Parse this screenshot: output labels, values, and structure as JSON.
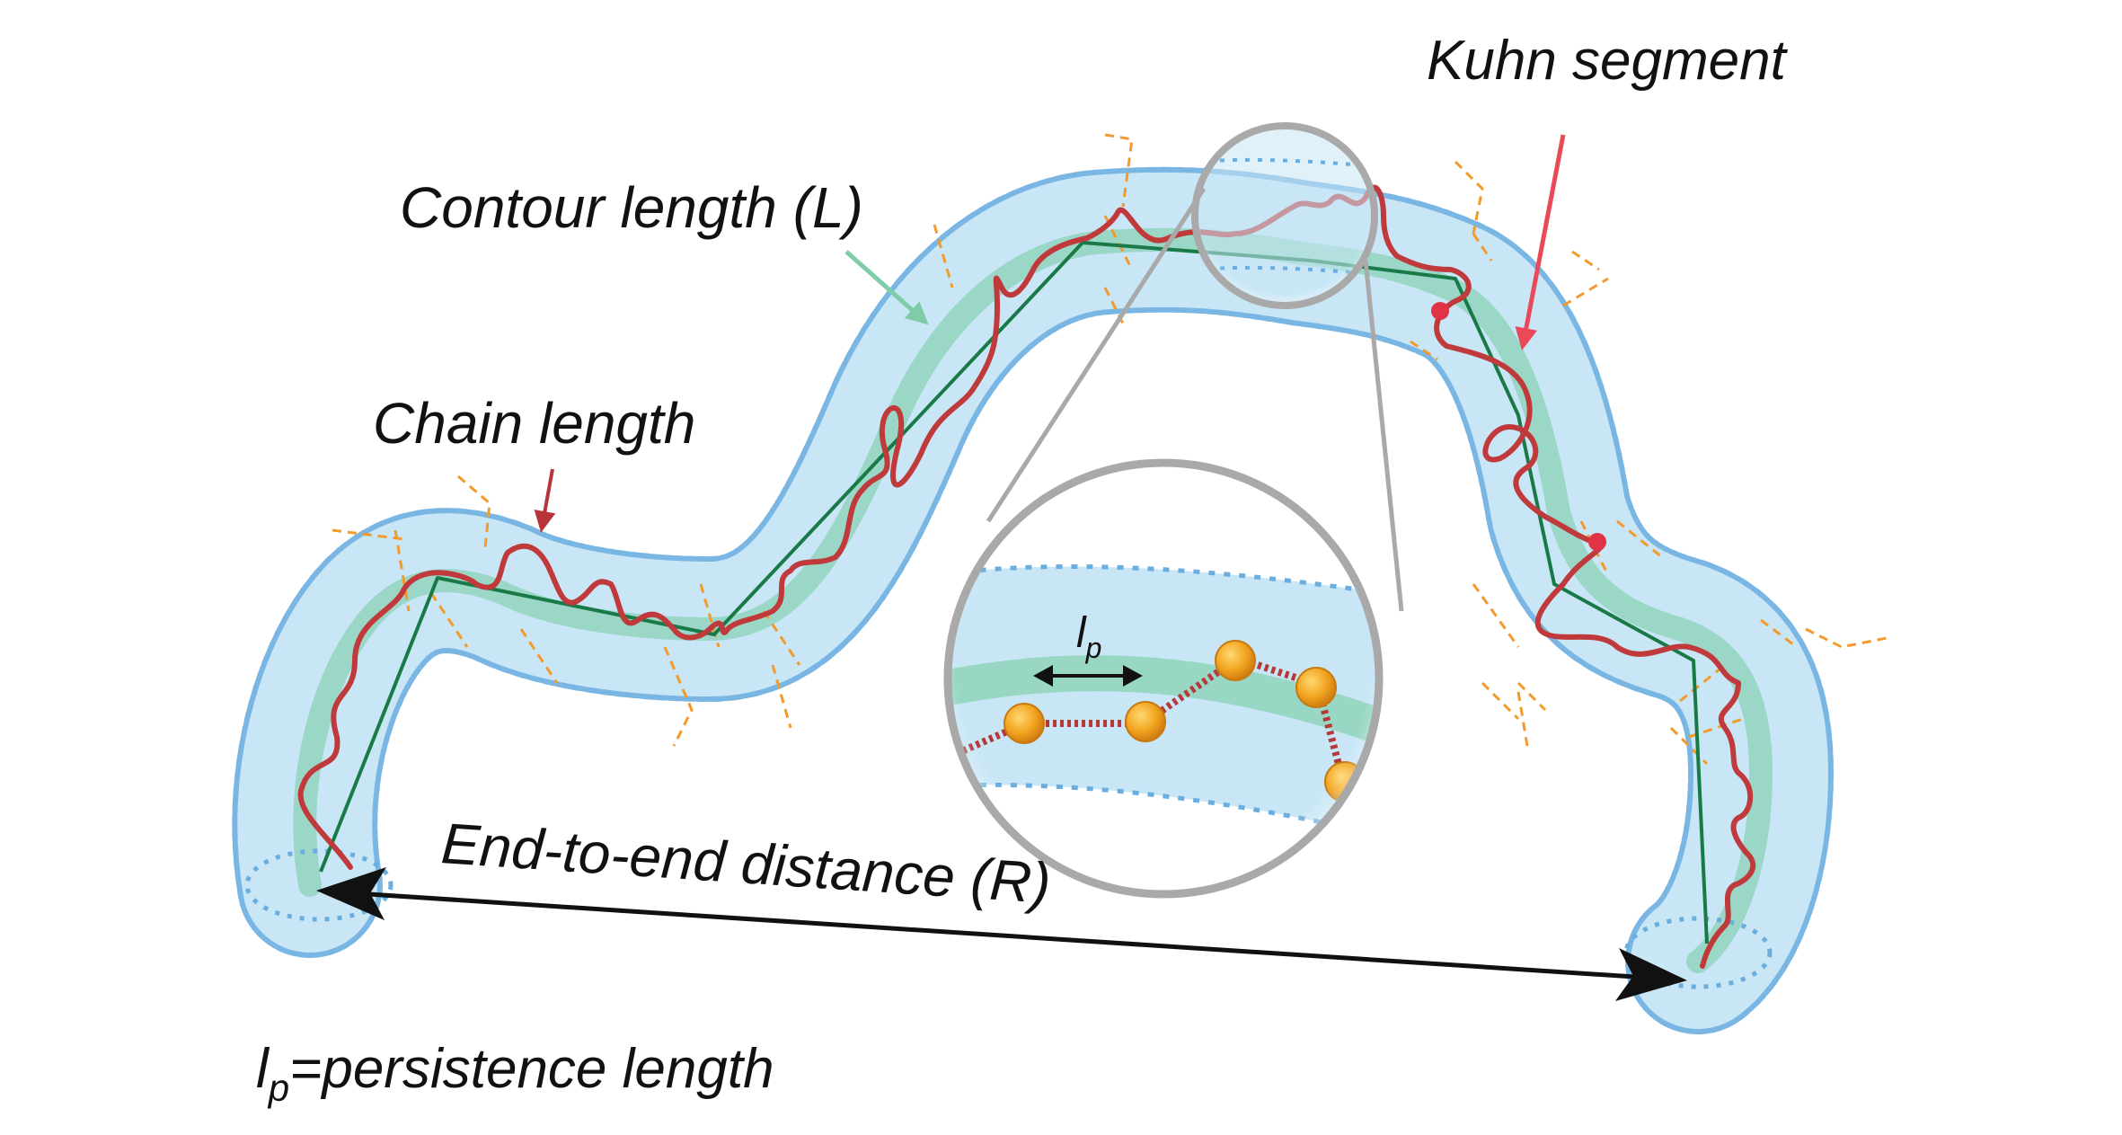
{
  "labels": {
    "kuhn_segment": "Kuhn segment",
    "contour_length": "Contour length (L)",
    "chain_length": "Chain length",
    "end_to_end": "End-to-end distance (R)",
    "lp_symbol": "l",
    "lp_subscript": "p",
    "legend_rest": "=persistence length"
  },
  "colors": {
    "tube_fill": "#c8e6f5",
    "tube_border": "#6aaee0",
    "contour_band": "#8fd3bb",
    "kuhn_line": "#1a7a47",
    "chain": "#c0393b",
    "kuhn_arrow": "#ea4a58",
    "chain_arrow": "#b8343a",
    "contour_arrow": "#7fcca9",
    "fragments": "#f39a2b",
    "magnifier_rim": "#a9a9a9",
    "bead": "#f2a51f",
    "bond": "#b5383a"
  },
  "icons": {
    "magnifier": "magnifier-circle-icon",
    "bead": "monomer-bead-icon"
  }
}
